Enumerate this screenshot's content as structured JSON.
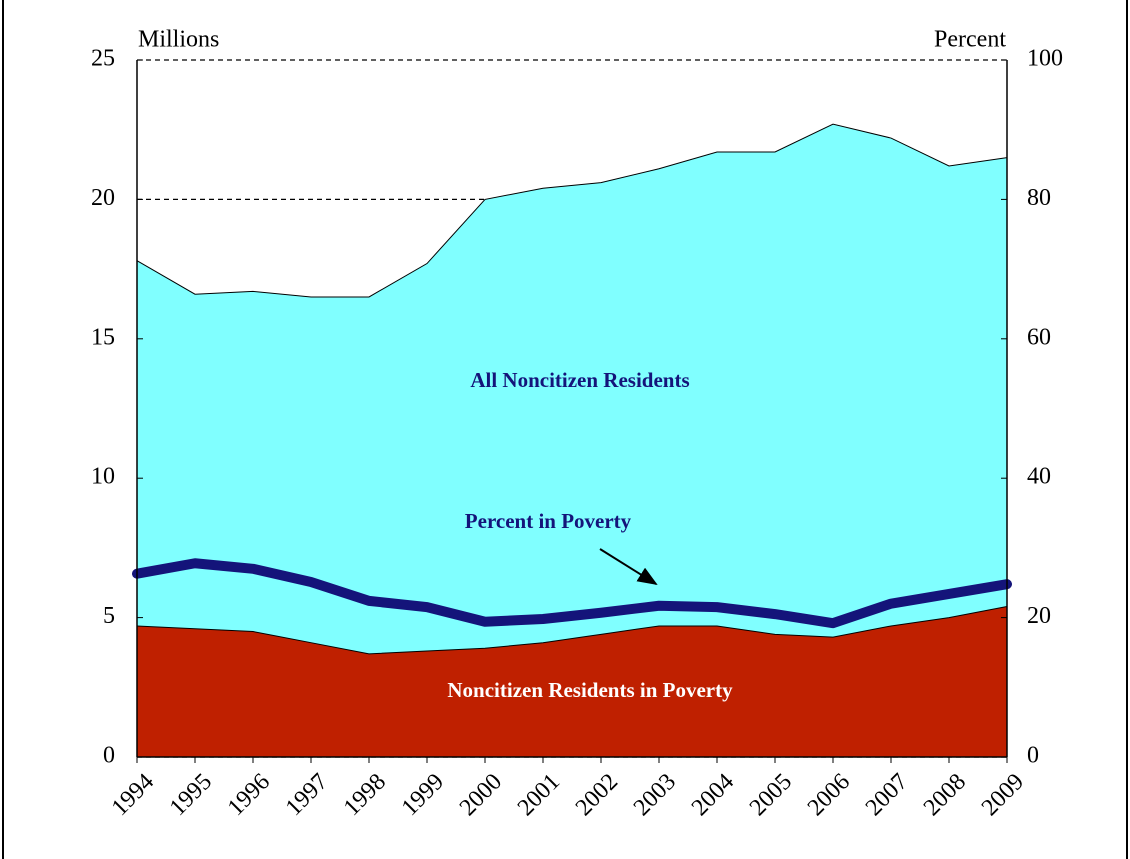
{
  "chart_data": {
    "type": "area",
    "y_label": "Millions",
    "y2_label": "Percent",
    "categories": [
      "1994",
      "1995",
      "1996",
      "1997",
      "1998",
      "1999",
      "2000",
      "2001",
      "2002",
      "2003",
      "2004",
      "2005",
      "2006",
      "2007",
      "2008",
      "2009"
    ],
    "series": [
      {
        "name": "All Noncitizen Residents",
        "color": "#80ffff",
        "values": [
          17.8,
          16.6,
          16.7,
          16.5,
          16.5,
          17.7,
          20.0,
          20.4,
          20.6,
          21.1,
          21.7,
          21.7,
          22.7,
          22.2,
          21.2,
          21.5
        ]
      },
      {
        "name": "Noncitizen Residents in Poverty",
        "color": "#bf2000",
        "values": [
          4.7,
          4.6,
          4.5,
          4.1,
          3.7,
          3.8,
          3.9,
          4.1,
          4.4,
          4.7,
          4.7,
          4.4,
          4.3,
          4.7,
          5.0,
          5.4
        ]
      },
      {
        "name": "Percent in Poverty",
        "color": "#14147a",
        "axis": "y2",
        "values": [
          26.3,
          27.8,
          27.0,
          25.1,
          22.4,
          21.5,
          19.4,
          19.8,
          20.7,
          21.7,
          21.5,
          20.5,
          19.2,
          22.0,
          23.4,
          24.8
        ]
      }
    ],
    "ylim": [
      0,
      25
    ],
    "yticks": [
      0,
      5,
      10,
      15,
      20,
      25
    ],
    "y2lim": [
      0,
      100
    ],
    "y2ticks": [
      0,
      20,
      40,
      60,
      80,
      100
    ],
    "grid": true
  }
}
